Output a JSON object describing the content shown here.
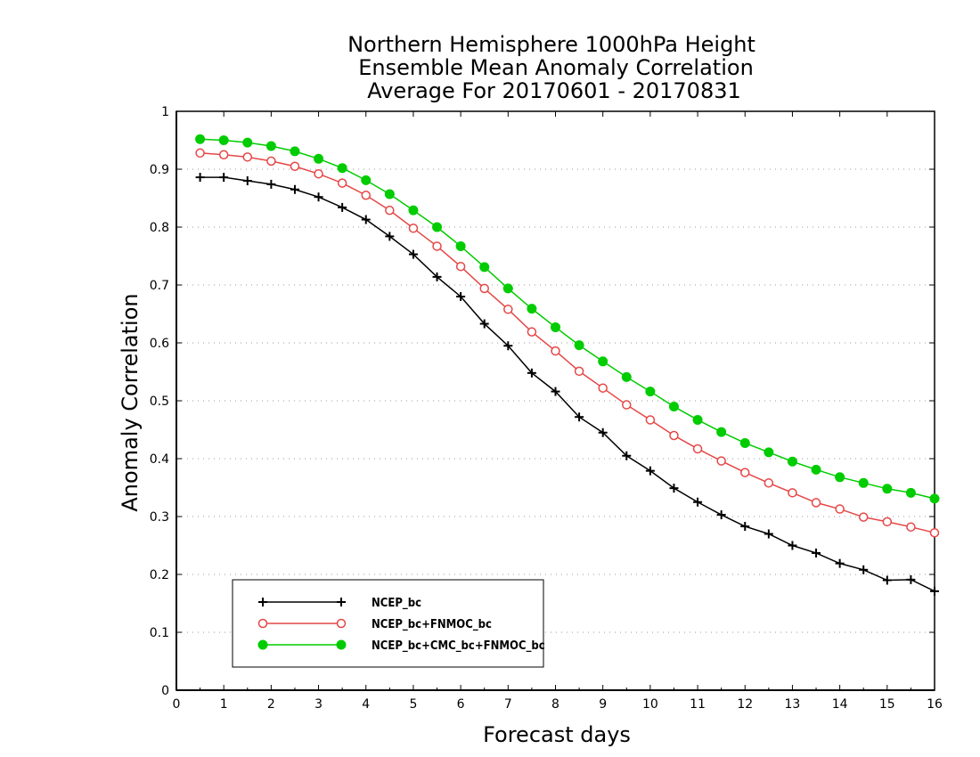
{
  "chart_data": {
    "type": "line",
    "title": [
      "Northern Hemisphere 1000hPa Height",
      "Ensemble Mean Anomaly Correlation",
      "Average For 20170601 - 20170831"
    ],
    "xlabel": "Forecast days",
    "ylabel": "Anomaly Correlation",
    "xlim": [
      0,
      16
    ],
    "ylim": [
      0,
      1
    ],
    "x_ticks": [
      "0",
      "1",
      "2",
      "3",
      "4",
      "5",
      "6",
      "7",
      "8",
      "9",
      "10",
      "11",
      "12",
      "13",
      "14",
      "15",
      "16"
    ],
    "y_ticks": [
      "0",
      "0.1",
      "0.2",
      "0.3",
      "0.4",
      "0.5",
      "0.6",
      "0.7",
      "0.8",
      "0.9",
      "1"
    ],
    "grid": true,
    "legend_position": "bottom-left",
    "x": [
      0.5,
      1,
      1.5,
      2,
      2.5,
      3,
      3.5,
      4,
      4.5,
      5,
      5.5,
      6,
      6.5,
      7,
      7.5,
      8,
      8.5,
      9,
      9.5,
      10,
      10.5,
      11,
      11.5,
      12,
      12.5,
      13,
      13.5,
      14,
      14.5,
      15,
      15.5,
      16
    ],
    "series": [
      {
        "name": "NCEP_bc",
        "color": "#000000",
        "marker": "plus",
        "values": [
          0.886,
          0.886,
          0.88,
          0.874,
          0.865,
          0.852,
          0.834,
          0.813,
          0.784,
          0.753,
          0.714,
          0.68,
          0.633,
          0.595,
          0.548,
          0.516,
          0.472,
          0.445,
          0.405,
          0.379,
          0.349,
          0.325,
          0.303,
          0.283,
          0.27,
          0.25,
          0.237,
          0.219,
          0.208,
          0.19,
          0.191,
          0.171
        ]
      },
      {
        "name": "NCEP_bc+FNMOC_bc",
        "color": "#e64646",
        "marker": "open-circle",
        "values": [
          0.928,
          0.925,
          0.921,
          0.914,
          0.905,
          0.892,
          0.876,
          0.855,
          0.829,
          0.798,
          0.767,
          0.732,
          0.694,
          0.658,
          0.619,
          0.586,
          0.551,
          0.522,
          0.493,
          0.467,
          0.44,
          0.417,
          0.396,
          0.376,
          0.358,
          0.341,
          0.324,
          0.313,
          0.299,
          0.291,
          0.282,
          0.272
        ]
      },
      {
        "name": "NCEP_bc+CMC_bc+FNMOC_bc",
        "color": "#00cc00",
        "marker": "filled-circle",
        "values": [
          0.952,
          0.95,
          0.946,
          0.94,
          0.931,
          0.918,
          0.902,
          0.881,
          0.857,
          0.829,
          0.8,
          0.767,
          0.731,
          0.694,
          0.659,
          0.627,
          0.596,
          0.568,
          0.541,
          0.516,
          0.49,
          0.467,
          0.446,
          0.427,
          0.411,
          0.395,
          0.381,
          0.368,
          0.358,
          0.348,
          0.341,
          0.331
        ]
      }
    ]
  }
}
